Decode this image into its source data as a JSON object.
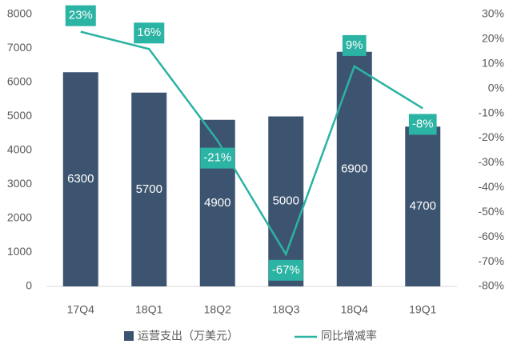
{
  "chart_data": {
    "type": "bar-line",
    "categories": [
      "17Q4",
      "18Q1",
      "18Q2",
      "18Q3",
      "18Q4",
      "19Q1"
    ],
    "series": [
      {
        "name": "运营支出（万美元）",
        "color": "#3d5470",
        "values": [
          6300,
          5700,
          4900,
          5000,
          6900,
          4700
        ]
      },
      {
        "name": "同比增减率",
        "color": "#2bb3a3",
        "axis": "y2",
        "values": [
          23,
          16,
          -21,
          -67,
          9,
          -8
        ],
        "value_labels": [
          "23%",
          "16%",
          "-21%",
          "-67%",
          "9%",
          "-8%"
        ]
      }
    ],
    "ylim": [
      0,
      8000
    ],
    "yticks": [
      0,
      1000,
      2000,
      3000,
      4000,
      5000,
      6000,
      7000,
      8000
    ],
    "y2lim": [
      -80,
      30
    ],
    "y2ticks": [
      {
        "value": 30,
        "label": "30%"
      },
      {
        "value": 20,
        "label": "20%"
      },
      {
        "value": 10,
        "label": "10%"
      },
      {
        "value": 0,
        "label": "0%"
      },
      {
        "value": -10,
        "label": "-10%"
      },
      {
        "value": -20,
        "label": "-20%"
      },
      {
        "value": -30,
        "label": "-30%"
      },
      {
        "value": -40,
        "label": "-40%"
      },
      {
        "value": -50,
        "label": "-50%"
      },
      {
        "value": -60,
        "label": "-60%"
      },
      {
        "value": -70,
        "label": "-70%"
      },
      {
        "value": -80,
        "label": "-80%"
      }
    ],
    "grid": false
  }
}
